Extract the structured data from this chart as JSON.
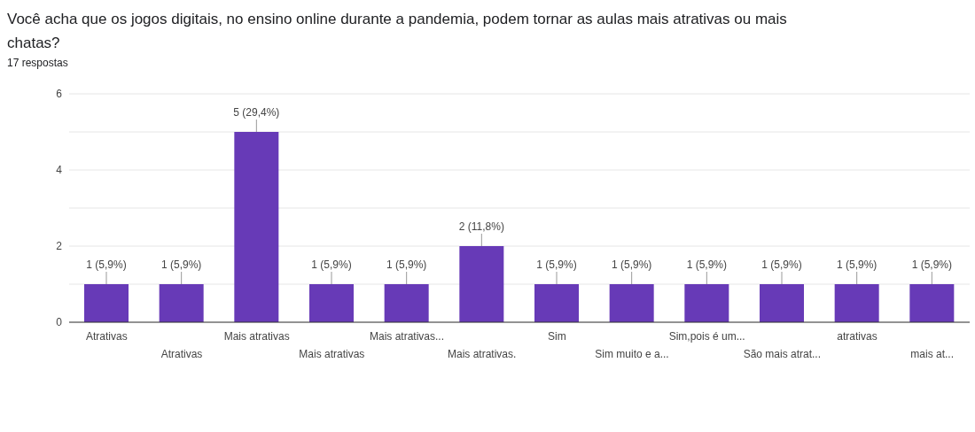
{
  "chart_data": {
    "type": "bar",
    "title": "Você acha que os jogos digitais, no ensino online durante a pandemia, podem tornar as aulas mais atrativas ou mais chatas?",
    "subtitle": "17 respostas",
    "categories": [
      "Atrativas",
      "Atrativas",
      "Mais atrativas",
      "Mais atrativas",
      "Mais atrativas...",
      "Mais atrativas.",
      "Sim",
      "Sim muito e a...",
      "Sim,pois é um...",
      "São mais atrat...",
      "atrativas",
      "mais at..."
    ],
    "values": [
      1,
      1,
      5,
      1,
      1,
      2,
      1,
      1,
      1,
      1,
      1,
      1
    ],
    "value_labels": [
      "1 (5,9%)",
      "1 (5,9%)",
      "5 (29,4%)",
      "1 (5,9%)",
      "1 (5,9%)",
      "2 (11,8%)",
      "1 (5,9%)",
      "1 (5,9%)",
      "1 (5,9%)",
      "1 (5,9%)",
      "1 (5,9%)",
      "1 (5,9%)"
    ],
    "color": "#673ab7",
    "ylim": [
      0,
      6
    ],
    "yticks": [
      0,
      {
        "value": 1,
        "label": null
      },
      2,
      {
        "value": 3,
        "label": null
      },
      4,
      {
        "value": 5,
        "label": null
      },
      6
    ],
    "grid": "y"
  }
}
